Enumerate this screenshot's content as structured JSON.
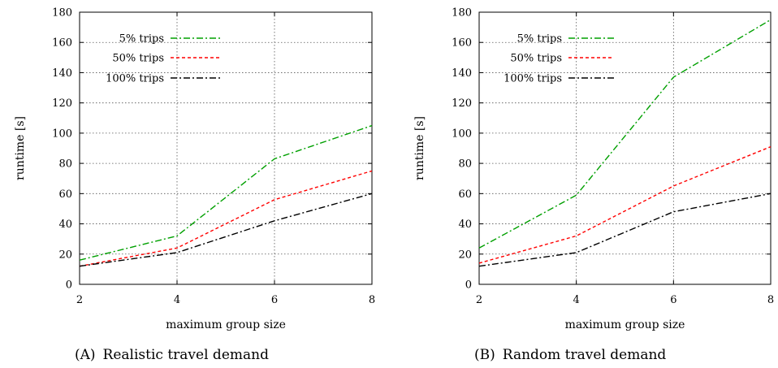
{
  "chart_data": [
    {
      "type": "line",
      "title": "",
      "xlabel": "maximum group size",
      "ylabel": "runtime [s]",
      "x": [
        2,
        4,
        6,
        8
      ],
      "xlim": [
        2,
        8
      ],
      "ylim": [
        0,
        180
      ],
      "xticks": [
        "2",
        "4",
        "6",
        "8"
      ],
      "yticks": [
        "0",
        "20",
        "40",
        "60",
        "80",
        "100",
        "120",
        "140",
        "160",
        "180"
      ],
      "grid": true,
      "legend_position": "top-left",
      "caption_tag": "(A)",
      "caption_text": "Realistic travel demand",
      "series": [
        {
          "name": "5% trips",
          "color": "#00a000",
          "dash": "dash-dot",
          "values": [
            16,
            32,
            83,
            105
          ]
        },
        {
          "name": "50% trips",
          "color": "#ff0000",
          "dash": "dashed",
          "values": [
            12,
            24,
            56,
            75
          ]
        },
        {
          "name": "100% trips",
          "color": "#000000",
          "dash": "dash-dot",
          "values": [
            12,
            21,
            42,
            60
          ]
        }
      ]
    },
    {
      "type": "line",
      "title": "",
      "xlabel": "maximum group size",
      "ylabel": "runtime [s]",
      "x": [
        2,
        4,
        6,
        8
      ],
      "xlim": [
        2,
        8
      ],
      "ylim": [
        0,
        180
      ],
      "xticks": [
        "2",
        "4",
        "6",
        "8"
      ],
      "yticks": [
        "0",
        "20",
        "40",
        "60",
        "80",
        "100",
        "120",
        "140",
        "160",
        "180"
      ],
      "grid": true,
      "legend_position": "top-left",
      "caption_tag": "(B)",
      "caption_text": "Random travel demand",
      "series": [
        {
          "name": "5% trips",
          "color": "#00a000",
          "dash": "dash-dot",
          "values": [
            24,
            59,
            137,
            175
          ]
        },
        {
          "name": "50% trips",
          "color": "#ff0000",
          "dash": "dashed",
          "values": [
            14,
            32,
            65,
            91
          ]
        },
        {
          "name": "100% trips",
          "color": "#000000",
          "dash": "dash-dot",
          "values": [
            12,
            21,
            48,
            60
          ]
        }
      ]
    }
  ]
}
